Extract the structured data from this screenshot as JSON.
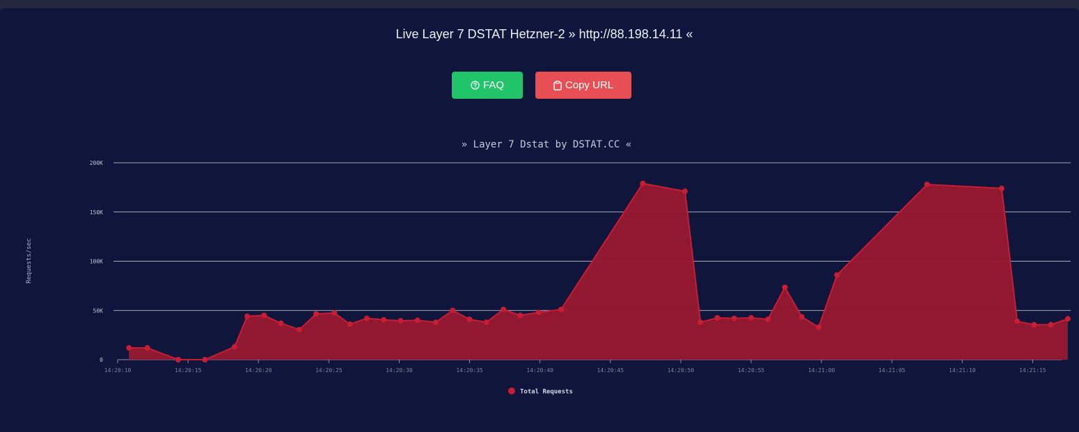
{
  "header": {
    "title": "Live Layer 7 DSTAT Hetzner-2 » http://88.198.14.11 «"
  },
  "buttons": {
    "faq_label": "FAQ",
    "faq_icon": "question-circle-icon",
    "faq_color": "#22c46a",
    "copy_label": "Copy URL",
    "copy_icon": "clipboard-icon",
    "copy_color": "#e84f54"
  },
  "chart_data": {
    "type": "area",
    "title": "» Layer 7 Dstat by DSTAT.CC «",
    "ylabel": "Requests/sec",
    "ylim": [
      0,
      200000
    ],
    "y_ticks": [
      "0",
      "50K",
      "100K",
      "150K",
      "200K"
    ],
    "y_tick_values": [
      0,
      50000,
      100000,
      150000,
      200000
    ],
    "x_ticks": [
      "14:20:10",
      "14:20:15",
      "14:20:20",
      "14:20:25",
      "14:20:30",
      "14:20:35",
      "14:20:40",
      "14:20:45",
      "14:20:50",
      "14:20:55",
      "14:21:00",
      "14:21:05",
      "14:21:10",
      "14:21:15"
    ],
    "xlim_seconds": [
      -0.3,
      67.7
    ],
    "grid": true,
    "legend_position": "bottom",
    "series": [
      {
        "name": "Total Requests",
        "color": "#c81d33",
        "fill": "#981830",
        "x_seconds": [
          0.8,
          2.1,
          4.3,
          6.2,
          8.3,
          9.2,
          10.4,
          11.6,
          12.9,
          14.1,
          15.4,
          16.5,
          17.7,
          18.9,
          20.1,
          21.3,
          22.6,
          23.8,
          25.0,
          26.2,
          27.4,
          28.6,
          29.9,
          31.5,
          37.3,
          40.3,
          41.4,
          42.6,
          43.8,
          45.0,
          46.2,
          47.4,
          48.6,
          49.8,
          51.1,
          57.5,
          62.8,
          63.9,
          65.1,
          66.3,
          67.5
        ],
        "values": [
          12000,
          12000,
          0,
          0,
          13000,
          44000,
          45000,
          37000,
          30500,
          46500,
          47500,
          36000,
          42000,
          40500,
          39500,
          40000,
          38000,
          50000,
          41000,
          38000,
          51000,
          45000,
          48000,
          51000,
          179000,
          171000,
          38000,
          42500,
          42000,
          42500,
          41000,
          73500,
          43500,
          33000,
          86000,
          178000,
          174000,
          39000,
          35500,
          35500,
          41500
        ]
      }
    ]
  }
}
